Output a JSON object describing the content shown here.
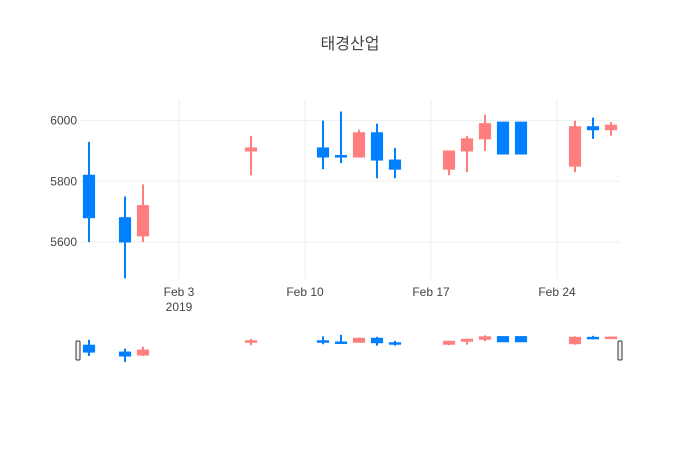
{
  "chart_data": {
    "type": "candlestick",
    "title": "태경산업",
    "ylim": [
      5478,
      6068
    ],
    "xlim": [
      "2019-01-28T12:00",
      "2019-02-27T12:00"
    ],
    "yticks": [
      5600,
      5800,
      6000
    ],
    "xticks": [
      {
        "date": "2019-02-03",
        "label": "Feb 3",
        "sublabel": "2019"
      },
      {
        "date": "2019-02-10",
        "label": "Feb 10",
        "sublabel": ""
      },
      {
        "date": "2019-02-17",
        "label": "Feb 17",
        "sublabel": ""
      },
      {
        "date": "2019-02-24",
        "label": "Feb 24",
        "sublabel": ""
      }
    ],
    "increasing_color": "#ff7f7f",
    "decreasing_color": "#007fff",
    "grid": true,
    "rangeslider": true,
    "candles": [
      {
        "date": "2019-01-29",
        "open": 5820,
        "high": 5930,
        "low": 5600,
        "close": 5680
      },
      {
        "date": "2019-01-31",
        "open": 5680,
        "high": 5750,
        "low": 5480,
        "close": 5600
      },
      {
        "date": "2019-02-01",
        "open": 5620,
        "high": 5790,
        "low": 5600,
        "close": 5720
      },
      {
        "date": "2019-02-07",
        "open": 5900,
        "high": 5950,
        "low": 5820,
        "close": 5910
      },
      {
        "date": "2019-02-11",
        "open": 5910,
        "high": 6000,
        "low": 5840,
        "close": 5880
      },
      {
        "date": "2019-02-12",
        "open": 5885,
        "high": 6030,
        "low": 5860,
        "close": 5880
      },
      {
        "date": "2019-02-13",
        "open": 5880,
        "high": 5970,
        "low": 5880,
        "close": 5960
      },
      {
        "date": "2019-02-14",
        "open": 5960,
        "high": 5990,
        "low": 5810,
        "close": 5870
      },
      {
        "date": "2019-02-15",
        "open": 5870,
        "high": 5910,
        "low": 5810,
        "close": 5840
      },
      {
        "date": "2019-02-18",
        "open": 5840,
        "high": 5900,
        "low": 5820,
        "close": 5900
      },
      {
        "date": "2019-02-19",
        "open": 5900,
        "high": 5950,
        "low": 5830,
        "close": 5940
      },
      {
        "date": "2019-02-20",
        "open": 5940,
        "high": 6020,
        "low": 5900,
        "close": 5990
      },
      {
        "date": "2019-02-21",
        "open": 5995,
        "high": 5995,
        "low": 5890,
        "close": 5890
      },
      {
        "date": "2019-02-22",
        "open": 5995,
        "high": 5995,
        "low": 5890,
        "close": 5890
      },
      {
        "date": "2019-02-25",
        "open": 5850,
        "high": 6000,
        "low": 5830,
        "close": 5980
      },
      {
        "date": "2019-02-26",
        "open": 5980,
        "high": 6010,
        "low": 5940,
        "close": 5970
      },
      {
        "date": "2019-02-27",
        "open": 5970,
        "high": 5995,
        "low": 5950,
        "close": 5985
      }
    ]
  }
}
